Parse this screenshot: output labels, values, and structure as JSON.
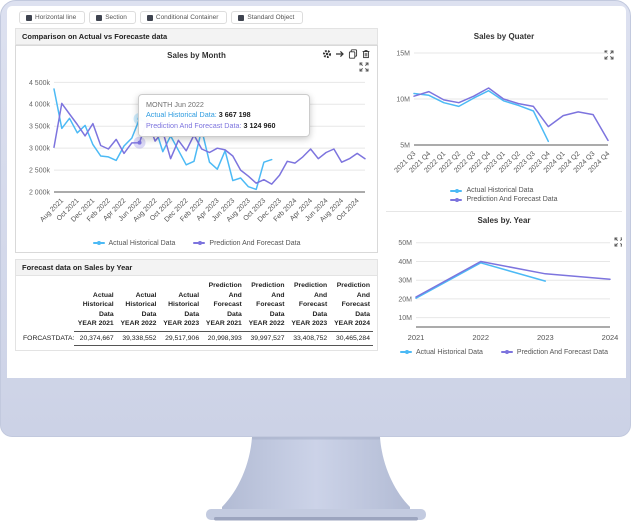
{
  "toolbar": {
    "buttons": [
      {
        "label": "Horizontal line"
      },
      {
        "label": "Section"
      },
      {
        "label": "Conditional Container"
      },
      {
        "label": "Standard Object"
      }
    ]
  },
  "left_panel": {
    "section_title": "Comparison on Actual vs Forecaste data"
  },
  "tooltip": {
    "title": "MONTH Jun 2022",
    "lines": [
      {
        "label": "Actual Historical Data:",
        "value": "3 667 198",
        "color": "#2e9ce0"
      },
      {
        "label": "Prediction And Forecast Data:",
        "value": "3 124 960",
        "color": "#7d74de"
      }
    ]
  },
  "table": {
    "title": "Forecast data on Sales by Year",
    "row_label": "FORCASTDATA:",
    "columns": [
      "Actual\nHistorical\nData\nYEAR 2021",
      "Actual\nHistorical\nData\nYEAR 2022",
      "Actual\nHistorical\nData\nYEAR 2023",
      "Prediction\nAnd\nForecast\nData\nYEAR 2021",
      "Prediction\nAnd\nForecast\nData\nYEAR 2022",
      "Prediction\nAnd\nForecast\nData\nYEAR 2023",
      "Prediction\nAnd\nForecast\nData\nYEAR 2024"
    ],
    "values": [
      "20,374,667",
      "39,338,552",
      "29,517,906",
      "20,998,393",
      "39,997,527",
      "33,408,752",
      "30,465,284"
    ]
  },
  "chart_data": {
    "month": {
      "type": "line",
      "title": "Sales by Month",
      "ylabel_unit": "k",
      "ymin": 2000,
      "ymax": 4600,
      "yticks": [
        {
          "v": 2000,
          "label": "2 000k"
        },
        {
          "v": 2500,
          "label": "2 500k"
        },
        {
          "v": 3000,
          "label": "3 000k"
        },
        {
          "v": 3500,
          "label": "3 500k"
        },
        {
          "v": 4000,
          "label": "4 000k"
        },
        {
          "v": 4500,
          "label": "4 500k"
        }
      ],
      "categories": [
        "Jul 2021",
        "Aug 2021",
        "Sep 2021",
        "Oct 2021",
        "Nov 2021",
        "Dec 2021",
        "Jan 2022",
        "Feb 2022",
        "Mar 2022",
        "Apr 2022",
        "May 2022",
        "Jun 2022",
        "Jul 2022",
        "Aug 2022",
        "Sep 2022",
        "Oct 2022",
        "Nov 2022",
        "Dec 2022",
        "Jan 2023",
        "Feb 2023",
        "Mar 2023",
        "Apr 2023",
        "May 2023",
        "Jun 2023",
        "Jul 2023",
        "Aug 2023",
        "Sep 2023",
        "Oct 2023",
        "Nov 2023",
        "Dec 2023",
        "Jan 2024",
        "Feb 2024",
        "Mar 2024",
        "Apr 2024",
        "May 2024",
        "Jun 2024",
        "Jul 2024",
        "Aug 2024",
        "Sep 2024",
        "Oct 2024",
        "Nov 2024"
      ],
      "tick_start": 1,
      "tick_every": 2,
      "highlight_index": 11,
      "series": [
        {
          "name": "Actual Historical Data",
          "color": "#4cbaf5",
          "values": [
            4350,
            3450,
            3680,
            3350,
            3520,
            3080,
            2820,
            2800,
            2720,
            3050,
            3230,
            3667,
            3580,
            3480,
            2920,
            3280,
            2950,
            2620,
            2700,
            3420,
            2680,
            2520,
            2940,
            2260,
            2320,
            2120,
            2060,
            2680,
            2740,
            null,
            null,
            null,
            null,
            null,
            null,
            null,
            null,
            null,
            null,
            null,
            null
          ]
        },
        {
          "name": "Prediction And Forecast Data",
          "color": "#7d74de",
          "values": [
            3020,
            4020,
            3780,
            3540,
            3280,
            3560,
            3060,
            2980,
            3200,
            2880,
            3120,
            3125,
            3660,
            3160,
            3380,
            2760,
            3180,
            2940,
            3300,
            2980,
            2900,
            3000,
            2960,
            2820,
            2500,
            2360,
            2200,
            2280,
            2180,
            2380,
            2700,
            2660,
            2800,
            2980,
            2760,
            2900,
            2980,
            2680,
            2760,
            2880,
            2760
          ]
        }
      ]
    },
    "quarter": {
      "type": "line",
      "title": "Sales by Quater",
      "ylabel_unit": "M",
      "ymin": 5,
      "ymax": 15,
      "yticks": [
        {
          "v": 5,
          "label": "5M"
        },
        {
          "v": 10,
          "label": "10M"
        },
        {
          "v": 15,
          "label": "15M"
        }
      ],
      "categories": [
        "2021 Q3",
        "2021 Q4",
        "2022 Q1",
        "2022 Q2",
        "2022 Q3",
        "2022 Q4",
        "2023 Q1",
        "2023 Q2",
        "2023 Q3",
        "2023 Q4",
        "2024 Q1",
        "2024 Q2",
        "2024 Q3",
        "2024 Q4"
      ],
      "tick_start": 0,
      "tick_every": 1,
      "series": [
        {
          "name": "Actual Historical Data",
          "color": "#4cbaf5",
          "values": [
            10.6,
            10.4,
            9.6,
            9.2,
            10.1,
            10.9,
            9.8,
            9.3,
            8.7,
            5.4,
            null,
            null,
            null,
            null
          ]
        },
        {
          "name": "Prediction And Forecast Data",
          "color": "#7d74de",
          "values": [
            10.3,
            10.8,
            9.9,
            9.6,
            10.3,
            11.2,
            10.0,
            9.5,
            9.2,
            7.0,
            8.2,
            8.6,
            8.3,
            5.5
          ]
        }
      ]
    },
    "year": {
      "type": "line",
      "title": "Sales by. Year",
      "ylabel_unit": "M",
      "ymin": 5,
      "ymax": 52,
      "yticks": [
        {
          "v": 10,
          "label": "10M"
        },
        {
          "v": 20,
          "label": "20M"
        },
        {
          "v": 30,
          "label": "30M"
        },
        {
          "v": 40,
          "label": "40M"
        },
        {
          "v": 50,
          "label": "50M"
        }
      ],
      "categories": [
        "2021",
        "2022",
        "2023",
        "2024"
      ],
      "tick_start": 0,
      "tick_every": 1,
      "series": [
        {
          "name": "Actual Historical Data",
          "color": "#4cbaf5",
          "values": [
            20.4,
            39.3,
            29.5,
            null
          ]
        },
        {
          "name": "Prediction And Forecast Data",
          "color": "#7d74de",
          "values": [
            21.0,
            40.0,
            33.4,
            30.5
          ]
        }
      ]
    }
  }
}
